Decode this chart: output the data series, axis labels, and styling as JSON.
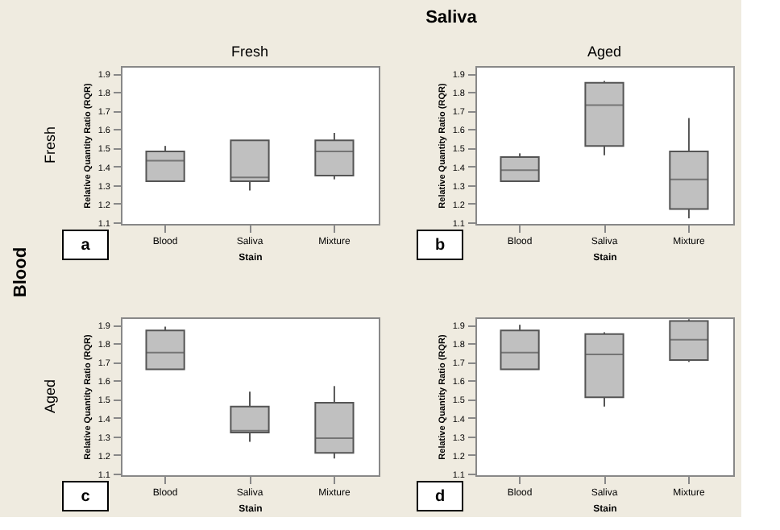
{
  "chart_data": [
    {
      "type": "box",
      "title": "Fresh",
      "xlabel": "Stain",
      "ylabel": "Relative Quantity Ratio (RQR)",
      "categories": [
        "Blood",
        "Saliva",
        "Mixture"
      ],
      "colors": [
        "#c0c0c0",
        "#c0c0c0",
        "#c0c0c0"
      ],
      "ylim": [
        1.09,
        1.94
      ],
      "yticks": [
        1.1,
        1.2,
        1.3,
        1.4,
        1.5,
        1.6,
        1.7,
        1.8,
        1.9
      ],
      "grid": false,
      "annotations": [
        "a",
        "Fresh",
        "Saliva",
        "Blood"
      ],
      "boxes": [
        {
          "low": 1.32,
          "q1": 1.32,
          "median": 1.43,
          "q3": 1.48,
          "high": 1.51
        },
        {
          "low": 1.27,
          "q1": 1.32,
          "median": 1.34,
          "q3": 1.54,
          "high": 1.54
        },
        {
          "low": 1.33,
          "q1": 1.35,
          "median": 1.48,
          "q3": 1.54,
          "high": 1.58
        }
      ]
    },
    {
      "type": "box",
      "title": "Aged",
      "xlabel": "Stain",
      "ylabel": "Relative Quantity Ratio (RQR)",
      "categories": [
        "Blood",
        "Saliva",
        "Mixture"
      ],
      "colors": [
        "#c0c0c0",
        "#c0c0c0",
        "#c0c0c0"
      ],
      "ylim": [
        1.09,
        1.94
      ],
      "yticks": [
        1.1,
        1.2,
        1.3,
        1.4,
        1.5,
        1.6,
        1.7,
        1.8,
        1.9
      ],
      "grid": false,
      "annotations": [
        "b"
      ],
      "boxes": [
        {
          "low": 1.32,
          "q1": 1.32,
          "median": 1.38,
          "q3": 1.45,
          "high": 1.47
        },
        {
          "low": 1.46,
          "q1": 1.51,
          "median": 1.73,
          "q3": 1.85,
          "high": 1.86
        },
        {
          "low": 1.12,
          "q1": 1.17,
          "median": 1.33,
          "q3": 1.48,
          "high": 1.66
        }
      ]
    },
    {
      "type": "box",
      "xlabel": "Stain",
      "ylabel": "Relative Quantity Ratio (RQR)",
      "categories": [
        "Blood",
        "Saliva",
        "Mixture"
      ],
      "colors": [
        "#c0c0c0",
        "#c0c0c0",
        "#c0c0c0"
      ],
      "ylim": [
        1.09,
        1.94
      ],
      "yticks": [
        1.1,
        1.2,
        1.3,
        1.4,
        1.5,
        1.6,
        1.7,
        1.8,
        1.9
      ],
      "grid": false,
      "annotations": [
        "c",
        "Aged"
      ],
      "boxes": [
        {
          "low": 1.66,
          "q1": 1.66,
          "median": 1.75,
          "q3": 1.87,
          "high": 1.89
        },
        {
          "low": 1.27,
          "q1": 1.32,
          "median": 1.33,
          "q3": 1.46,
          "high": 1.54
        },
        {
          "low": 1.18,
          "q1": 1.21,
          "median": 1.29,
          "q3": 1.48,
          "high": 1.57
        }
      ]
    },
    {
      "type": "box",
      "xlabel": "Stain",
      "ylabel": "Relative Quantity Ratio (RQR)",
      "categories": [
        "Blood",
        "Saliva",
        "Mixture"
      ],
      "colors": [
        "#c0c0c0",
        "#c0c0c0",
        "#c0c0c0"
      ],
      "ylim": [
        1.09,
        1.94
      ],
      "yticks": [
        1.1,
        1.2,
        1.3,
        1.4,
        1.5,
        1.6,
        1.7,
        1.8,
        1.9
      ],
      "grid": false,
      "annotations": [
        "d"
      ],
      "boxes": [
        {
          "low": 1.66,
          "q1": 1.66,
          "median": 1.75,
          "q3": 1.87,
          "high": 1.9
        },
        {
          "low": 1.46,
          "q1": 1.51,
          "median": 1.74,
          "q3": 1.85,
          "high": 1.86
        },
        {
          "low": 1.7,
          "q1": 1.71,
          "median": 1.82,
          "q3": 1.92,
          "high": 1.93
        }
      ]
    }
  ]
}
